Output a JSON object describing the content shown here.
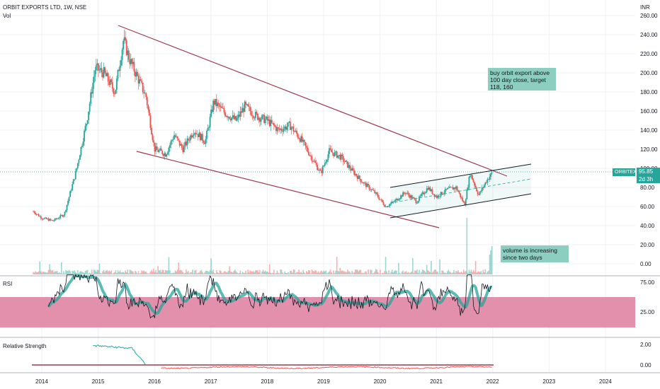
{
  "header": {
    "title": "ORBIT EXPORTS LTD, 1W, NSE",
    "vol_label": "Vol",
    "currency": "INR"
  },
  "price_axis": {
    "ticks": [
      "260.00",
      "240.00",
      "220.00",
      "200.00",
      "180.00",
      "160.00",
      "140.00",
      "120.00",
      "100.00",
      "80.00",
      "60.00",
      "40.00",
      "20.00",
      "0.00"
    ]
  },
  "last_price": {
    "symbol": "ORBITEXP",
    "value": "95.85",
    "countdown": "2d 3h",
    "color": "#26a69a"
  },
  "annotations": {
    "buy_note": "buy orbit export above 100 day close, target 118, 160",
    "volume_note": "volume is increasing since two days"
  },
  "rsi": {
    "label": "RSI",
    "ticks": [
      "75.00",
      "25.00"
    ],
    "band_color": "#e18aa8"
  },
  "relative_strength": {
    "label": "Relative Strength",
    "ticks": [
      "2.00",
      "0.00"
    ]
  },
  "x_axis": {
    "labels": [
      "2014",
      "2015",
      "2016",
      "2017",
      "2018",
      "2019",
      "2020",
      "2021",
      "2022",
      "2023",
      "2024"
    ]
  },
  "colors": {
    "up": "#26a69a",
    "down": "#ef5350",
    "trendline": "#9c3a4f",
    "channel": "#131722"
  },
  "chart_data": {
    "type": "line",
    "title": "ORBIT EXPORTS LTD, 1W, NSE",
    "x": [
      2013.85,
      2014.0,
      2014.2,
      2014.4,
      2014.6,
      2014.8,
      2014.95,
      2015.1,
      2015.3,
      2015.45,
      2015.55,
      2015.7,
      2015.85,
      2016.0,
      2016.2,
      2016.35,
      2016.5,
      2016.7,
      2016.9,
      2017.05,
      2017.25,
      2017.45,
      2017.6,
      2017.8,
      2018.0,
      2018.2,
      2018.4,
      2018.6,
      2018.8,
      2018.95,
      2019.1,
      2019.3,
      2019.5,
      2019.7,
      2019.9,
      2020.1,
      2020.25,
      2020.45,
      2020.65,
      2020.85,
      2021.0,
      2021.2,
      2021.35,
      2021.5,
      2021.6,
      2021.75,
      2021.9,
      2022.0
    ],
    "series": [
      {
        "name": "Price",
        "values": [
          55,
          48,
          45,
          52,
          95,
          150,
          205,
          200,
          180,
          235,
          215,
          195,
          175,
          120,
          115,
          135,
          120,
          140,
          128,
          170,
          158,
          150,
          165,
          155,
          150,
          140,
          145,
          130,
          110,
          95,
          118,
          112,
          98,
          85,
          75,
          60,
          65,
          75,
          65,
          80,
          70,
          78,
          80,
          62,
          95,
          72,
          88,
          95.85
        ]
      }
    ],
    "y_range": [
      0,
      265
    ],
    "x_range": [
      2013.6,
      2024.6
    ],
    "grid": true,
    "legend": "none"
  }
}
